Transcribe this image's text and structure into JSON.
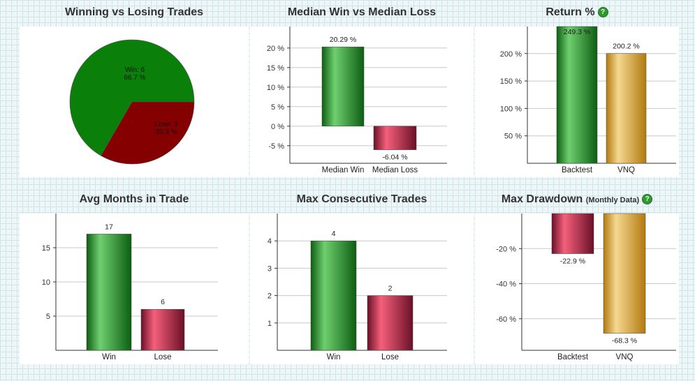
{
  "colors": {
    "win_dark": "#0d5e12",
    "win_light": "#6fcf6f",
    "lose_dark": "#6a1028",
    "lose_light": "#f5607a",
    "bench_dark": "#b27a10",
    "bench_light": "#f5d890",
    "pie_win": "#0a7f0a",
    "pie_lose": "#850000"
  },
  "help_glyph": "?",
  "chart_data": [
    {
      "id": "win-loss",
      "type": "pie",
      "title": "Winning vs Losing Trades",
      "slices": [
        {
          "name": "Win",
          "value": 6,
          "label": "Win: 6",
          "pct_label": "66.7 %",
          "color_key": "pie_win"
        },
        {
          "name": "Lose",
          "value": 3,
          "label": "Lose: 3",
          "pct_label": "33.3 %",
          "color_key": "pie_lose"
        }
      ]
    },
    {
      "id": "median",
      "type": "bar",
      "title": "Median Win vs Median Loss",
      "categories": [
        "Median Win",
        "Median Loss"
      ],
      "values": [
        20.29,
        -6.04
      ],
      "value_labels": [
        "20.29 %",
        "-6.04 %"
      ],
      "bar_colors": [
        "win",
        "lose"
      ],
      "ylim": [
        -9.5,
        25.5
      ],
      "ticks": [
        {
          "v": 20,
          "label": "20 %"
        },
        {
          "v": 15,
          "label": "15 %"
        },
        {
          "v": 10,
          "label": "10 %"
        },
        {
          "v": 5,
          "label": "5 %"
        },
        {
          "v": 0,
          "label": "0 %"
        },
        {
          "v": -5,
          "label": "-5 %"
        }
      ]
    },
    {
      "id": "return",
      "type": "bar",
      "title": "Return %",
      "help": true,
      "categories": [
        "Backtest",
        "VNQ"
      ],
      "values": [
        249.3,
        200.2
      ],
      "value_labels": [
        "249.3 %",
        "200.2 %"
      ],
      "bar_colors": [
        "win",
        "bench"
      ],
      "ylim": [
        0,
        249.3
      ],
      "value_label_inside_if_clipped": true,
      "ticks": [
        {
          "v": 200,
          "label": "200 %"
        },
        {
          "v": 150,
          "label": "150 %"
        },
        {
          "v": 100,
          "label": "100 %"
        },
        {
          "v": 50,
          "label": "50 %"
        }
      ]
    },
    {
      "id": "avg-months",
      "type": "bar",
      "title": "Avg Months in Trade",
      "categories": [
        "Win",
        "Lose"
      ],
      "values": [
        17,
        6
      ],
      "value_labels": [
        "17",
        "6"
      ],
      "bar_colors": [
        "win",
        "lose"
      ],
      "ylim": [
        0,
        20
      ],
      "ticks": [
        {
          "v": 15,
          "label": "15"
        },
        {
          "v": 10,
          "label": "10"
        },
        {
          "v": 5,
          "label": "5"
        }
      ]
    },
    {
      "id": "max-consec",
      "type": "bar",
      "title": "Max Consecutive Trades",
      "categories": [
        "Win",
        "Lose"
      ],
      "values": [
        4,
        2
      ],
      "value_labels": [
        "4",
        "2"
      ],
      "bar_colors": [
        "win",
        "lose"
      ],
      "ylim": [
        0,
        5
      ],
      "ticks": [
        {
          "v": 4,
          "label": "4"
        },
        {
          "v": 3,
          "label": "3"
        },
        {
          "v": 2,
          "label": "2"
        },
        {
          "v": 1,
          "label": "1"
        }
      ]
    },
    {
      "id": "drawdown",
      "type": "bar",
      "title": "Max Drawdown",
      "title_sub": "(Monthly Data)",
      "help": true,
      "categories": [
        "Backtest",
        "VNQ"
      ],
      "values": [
        -22.9,
        -68.3
      ],
      "value_labels": [
        "-22.9 %",
        "-68.3 %"
      ],
      "bar_colors": [
        "lose",
        "bench"
      ],
      "ylim": [
        -78,
        0
      ],
      "ticks": [
        {
          "v": -20,
          "label": "-20 %"
        },
        {
          "v": -40,
          "label": "-40 %"
        },
        {
          "v": -60,
          "label": "-60 %"
        }
      ]
    }
  ]
}
